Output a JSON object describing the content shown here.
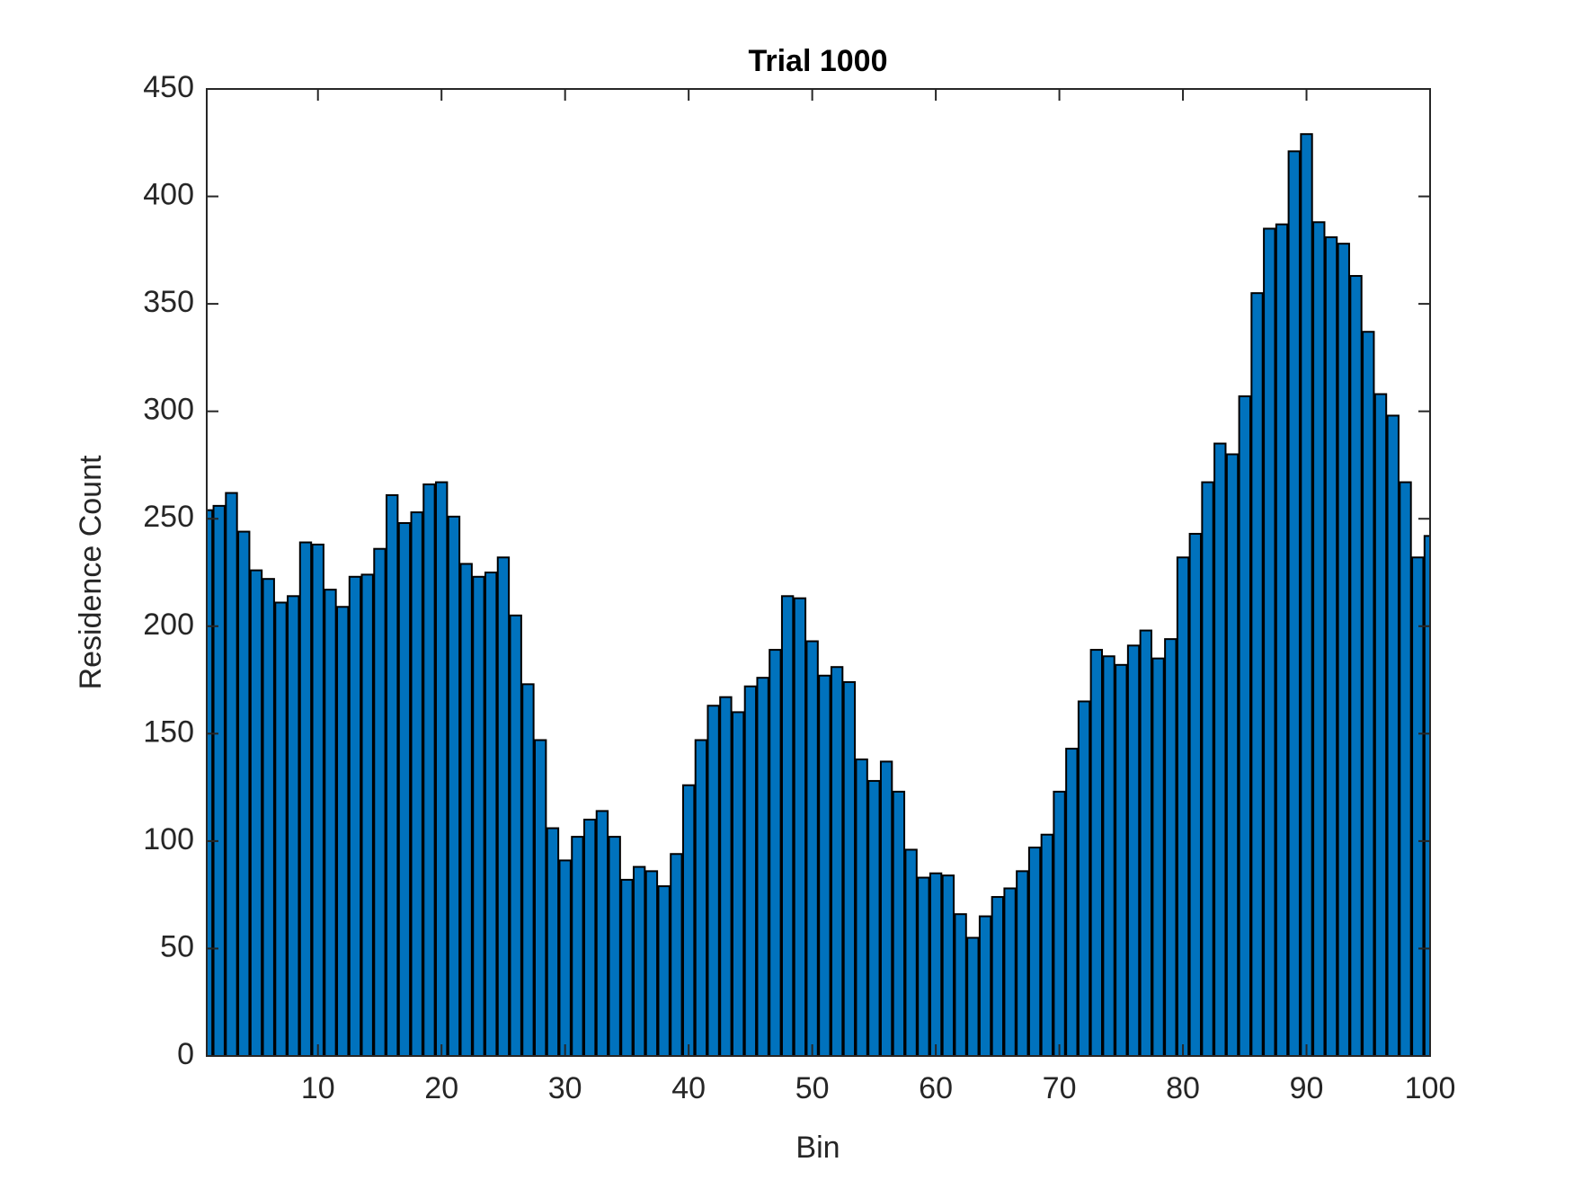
{
  "chart_data": {
    "type": "bar",
    "title": "Trial 1000",
    "x_label": "Bin",
    "y_label": "Residence Count",
    "x": [
      1,
      2,
      3,
      4,
      5,
      6,
      7,
      8,
      9,
      10,
      11,
      12,
      13,
      14,
      15,
      16,
      17,
      18,
      19,
      20,
      21,
      22,
      23,
      24,
      25,
      26,
      27,
      28,
      29,
      30,
      31,
      32,
      33,
      34,
      35,
      36,
      37,
      38,
      39,
      40,
      41,
      42,
      43,
      44,
      45,
      46,
      47,
      48,
      49,
      50,
      51,
      52,
      53,
      54,
      55,
      56,
      57,
      58,
      59,
      60,
      61,
      62,
      63,
      64,
      65,
      66,
      67,
      68,
      69,
      70,
      71,
      72,
      73,
      74,
      75,
      76,
      77,
      78,
      79,
      80,
      81,
      82,
      83,
      84,
      85,
      86,
      87,
      88,
      89,
      90,
      91,
      92,
      93,
      94,
      95,
      96,
      97,
      98,
      99,
      100
    ],
    "values": [
      254,
      256,
      262,
      244,
      226,
      222,
      211,
      214,
      239,
      238,
      217,
      209,
      223,
      224,
      236,
      261,
      248,
      253,
      266,
      267,
      251,
      229,
      223,
      225,
      232,
      205,
      173,
      147,
      106,
      91,
      102,
      110,
      114,
      102,
      82,
      88,
      86,
      79,
      94,
      126,
      147,
      163,
      167,
      160,
      172,
      176,
      189,
      214,
      213,
      193,
      177,
      181,
      174,
      138,
      128,
      137,
      123,
      96,
      83,
      85,
      84,
      66,
      55,
      65,
      74,
      78,
      86,
      97,
      103,
      123,
      143,
      165,
      189,
      186,
      182,
      191,
      198,
      185,
      194,
      232,
      243,
      267,
      285,
      280,
      307,
      355,
      385,
      387,
      421,
      429,
      388,
      381,
      378,
      363,
      337,
      308,
      298,
      267,
      232,
      242
    ],
    "color": "#0072bd",
    "xlim": [
      1,
      100
    ],
    "xticks": [
      10,
      20,
      30,
      40,
      50,
      60,
      70,
      80,
      90,
      100
    ],
    "ylim": [
      0,
      450
    ],
    "yticks": [
      0,
      50,
      100,
      150,
      200,
      250,
      300,
      350,
      400,
      450
    ]
  }
}
